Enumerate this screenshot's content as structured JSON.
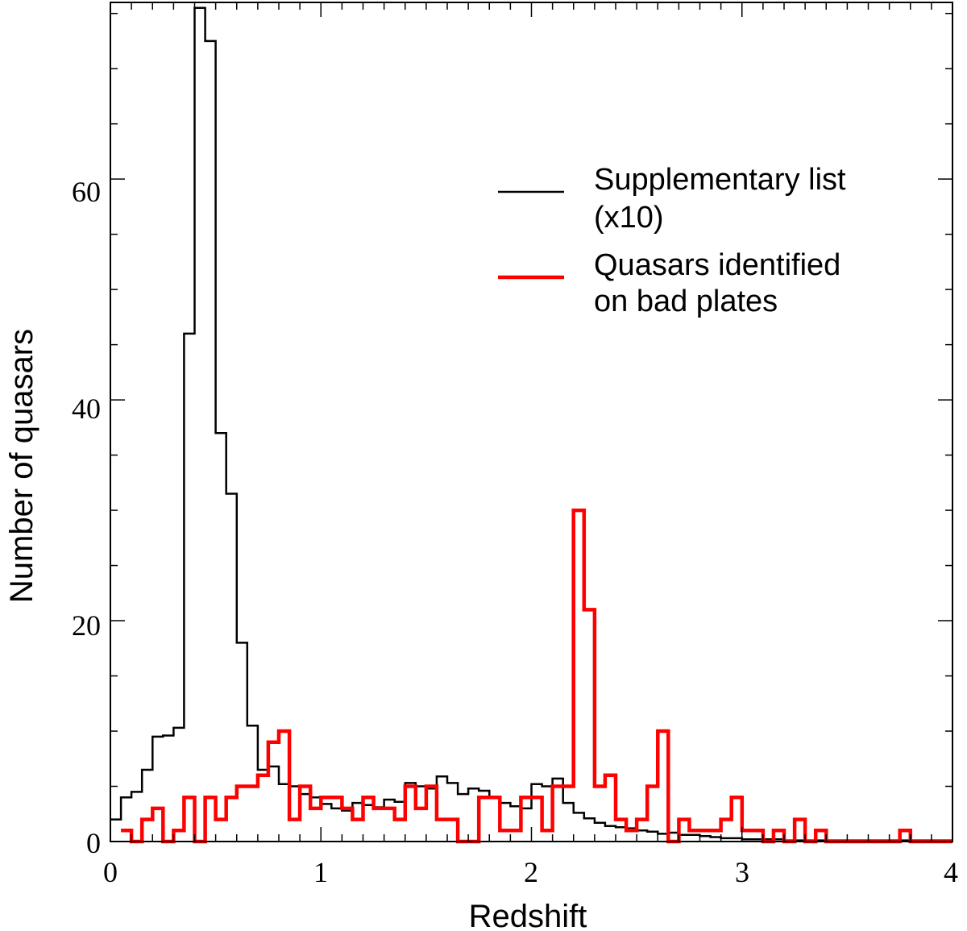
{
  "chart_data": {
    "type": "histogram",
    "xlabel": "Redshift",
    "ylabel": "Number of quasars",
    "xlim": [
      0,
      4
    ],
    "ylim": [
      0,
      76
    ],
    "bin_width": 0.05,
    "x_ticks": [
      "0",
      "1",
      "2",
      "3",
      "4"
    ],
    "y_ticks": [
      "0",
      "20",
      "40",
      "60"
    ],
    "colors": {
      "supplementary": "#000000",
      "bad_plates": "#ff0000"
    },
    "legend": {
      "position": "upper-right",
      "entries": [
        {
          "lines": [
            "Supplementary list",
            "(x10)"
          ],
          "color": "#000000"
        },
        {
          "lines": [
            "Quasars identified",
            "on bad plates"
          ],
          "color": "#ff0000"
        }
      ]
    },
    "series": [
      {
        "name": "Supplementary list (x10)",
        "color": "#000000",
        "x_start": 0.0,
        "values": [
          2.0,
          4.0,
          4.5,
          6.5,
          9.5,
          9.6,
          10.3,
          46.0,
          75.5,
          72.5,
          37.0,
          31.5,
          18.0,
          10.5,
          6.5,
          6.8,
          5.2,
          5.0,
          4.3,
          4.0,
          3.4,
          3.0,
          2.8,
          3.5,
          3.3,
          3.1,
          3.8,
          3.6,
          5.3,
          5.0,
          4.8,
          5.9,
          5.3,
          4.3,
          4.8,
          4.6,
          4.0,
          3.5,
          3.2,
          3.0,
          5.2,
          5.0,
          5.7,
          3.5,
          2.6,
          2.1,
          1.7,
          1.4,
          1.3,
          1.2,
          1.0,
          0.9,
          0.7,
          0.8,
          0.6,
          0.6,
          0.5,
          0.4,
          0.3,
          0.3,
          0.2,
          0.2,
          0.2,
          0.2,
          0.1,
          0.1,
          0.1,
          0.1,
          0.1,
          0.1,
          0.1,
          0.1,
          0.1,
          0.1,
          0.1,
          0.1,
          0.1,
          0.1,
          0.1,
          0.1
        ]
      },
      {
        "name": "Quasars identified on bad plates",
        "color": "#ff0000",
        "x_start": 0.05,
        "values": [
          1,
          0,
          2,
          3,
          0,
          1,
          4,
          0,
          4,
          2,
          4,
          5,
          5,
          6,
          9,
          10,
          2,
          5,
          3,
          4,
          4,
          3,
          2,
          4,
          3,
          3,
          2,
          5,
          3,
          5,
          2,
          2,
          0,
          0,
          4,
          4,
          1,
          1,
          4,
          4,
          1,
          5,
          5,
          30,
          21,
          5,
          6,
          2,
          1,
          2,
          5,
          10,
          0,
          2,
          1,
          1,
          1,
          2,
          4,
          1,
          1,
          0,
          1,
          0,
          2,
          0,
          1,
          0,
          0,
          0,
          0,
          0,
          0,
          0,
          1,
          0,
          0,
          0,
          0
        ]
      }
    ]
  }
}
